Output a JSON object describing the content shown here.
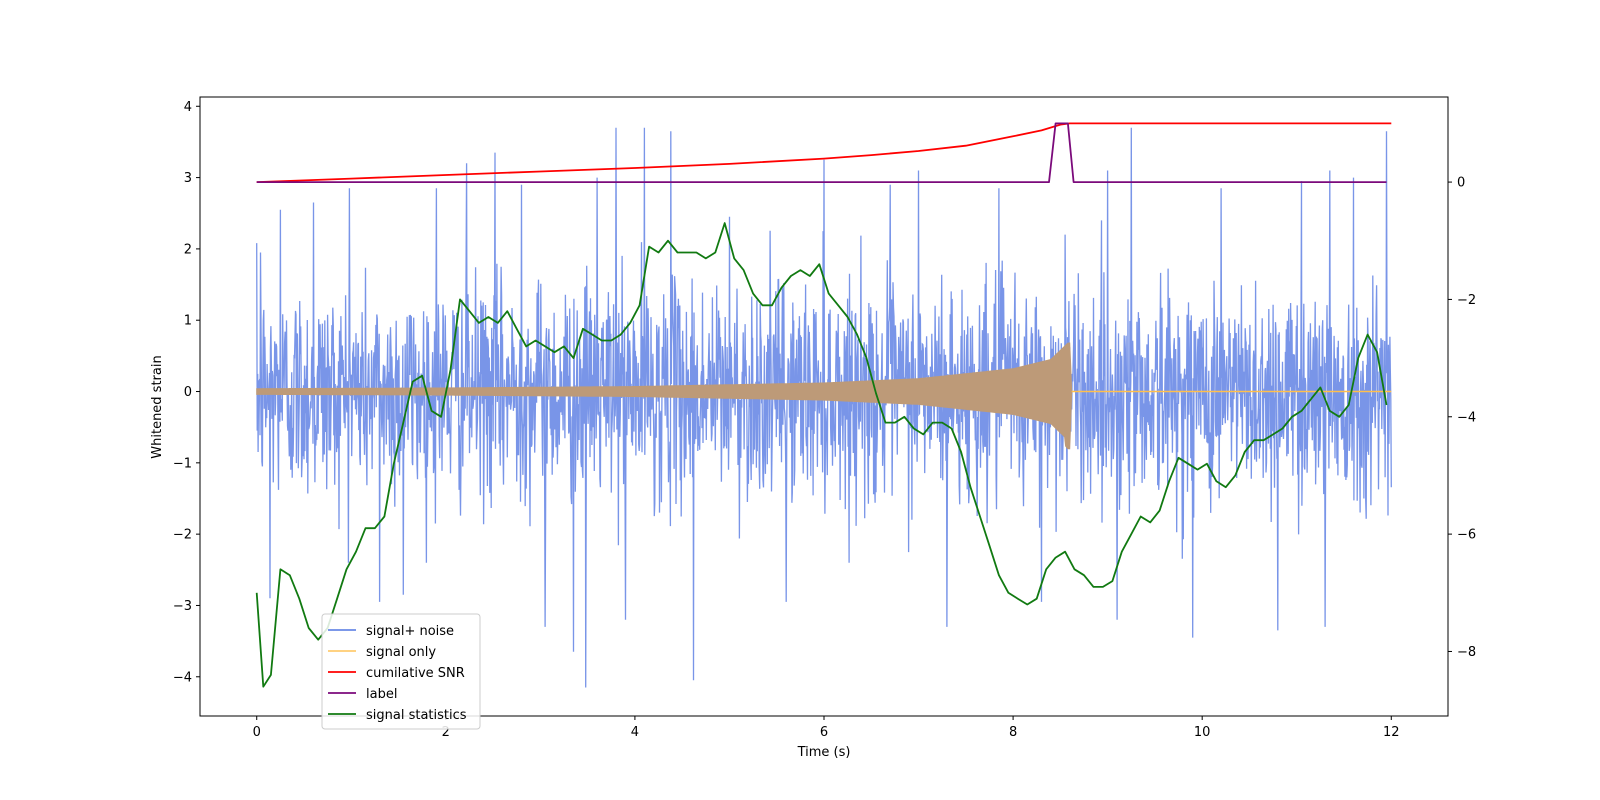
{
  "chart_data": {
    "type": "line",
    "title": "",
    "xlabel": "Time (s)",
    "ylabel": "Whitened strain",
    "xlim": [
      -0.6,
      12.6
    ],
    "ylim": [
      -4.55,
      4.13
    ],
    "ylim_right": [
      -9.1,
      1.45
    ],
    "xticks": [
      0,
      2,
      4,
      6,
      8,
      10,
      12
    ],
    "yticks": [
      -4,
      -3,
      -2,
      -1,
      0,
      1,
      2,
      3,
      4
    ],
    "yticks_right": [
      -8,
      -6,
      -4,
      -2,
      0
    ],
    "grid": false,
    "legend_position": "lower-left",
    "series": [
      {
        "name": "signal+ noise",
        "axis": "left",
        "color": "#6a8ae6",
        "style": "noise",
        "x_range": [
          0,
          12
        ],
        "baseline_std": 0.75,
        "spike_peaks": [
          {
            "x": 0.04,
            "y": 1.95
          },
          {
            "x": 0.14,
            "y": -2.9
          },
          {
            "x": 0.25,
            "y": 2.55
          },
          {
            "x": 0.6,
            "y": 2.65
          },
          {
            "x": 0.98,
            "y": 2.85
          },
          {
            "x": 1.3,
            "y": -2.95
          },
          {
            "x": 1.55,
            "y": -2.85
          },
          {
            "x": 1.9,
            "y": 2.85
          },
          {
            "x": 2.22,
            "y": 3.2
          },
          {
            "x": 2.52,
            "y": 3.35
          },
          {
            "x": 2.8,
            "y": 2.9
          },
          {
            "x": 3.05,
            "y": -3.3
          },
          {
            "x": 3.35,
            "y": -3.65
          },
          {
            "x": 3.48,
            "y": -4.15
          },
          {
            "x": 3.6,
            "y": 3.0
          },
          {
            "x": 3.8,
            "y": 3.7
          },
          {
            "x": 3.9,
            "y": -3.2
          },
          {
            "x": 4.1,
            "y": 3.7
          },
          {
            "x": 4.38,
            "y": 3.65
          },
          {
            "x": 4.62,
            "y": -4.05
          },
          {
            "x": 5.0,
            "y": 2.45
          },
          {
            "x": 5.6,
            "y": -2.95
          },
          {
            "x": 6.0,
            "y": 3.25
          },
          {
            "x": 6.7,
            "y": 2.9
          },
          {
            "x": 7.0,
            "y": 3.1
          },
          {
            "x": 7.3,
            "y": -3.3
          },
          {
            "x": 7.85,
            "y": 2.85
          },
          {
            "x": 8.3,
            "y": -2.95
          },
          {
            "x": 8.55,
            "y": 2.2
          },
          {
            "x": 9.0,
            "y": 3.1
          },
          {
            "x": 9.1,
            "y": -3.2
          },
          {
            "x": 9.25,
            "y": 3.7
          },
          {
            "x": 9.9,
            "y": -3.45
          },
          {
            "x": 10.2,
            "y": 2.85
          },
          {
            "x": 10.8,
            "y": -3.35
          },
          {
            "x": 11.05,
            "y": 2.95
          },
          {
            "x": 11.3,
            "y": -3.3
          },
          {
            "x": 11.35,
            "y": 3.1
          },
          {
            "x": 11.6,
            "y": 3.0
          },
          {
            "x": 11.95,
            "y": 3.65
          }
        ]
      },
      {
        "name": "signal only",
        "axis": "left",
        "color": "#ffbf4d",
        "style": "chirp",
        "x_range": [
          0,
          12
        ],
        "merger_x": 8.6,
        "envelope": [
          [
            0,
            0.04
          ],
          [
            2,
            0.05
          ],
          [
            4,
            0.07
          ],
          [
            6,
            0.12
          ],
          [
            7,
            0.18
          ],
          [
            8,
            0.32
          ],
          [
            8.4,
            0.45
          ],
          [
            8.58,
            0.68
          ],
          [
            8.6,
            0.68
          ],
          [
            8.62,
            0.0
          ],
          [
            12,
            0.0
          ]
        ],
        "fill_color": "#bd9a78"
      },
      {
        "name": "cumilative SNR",
        "axis": "right",
        "color": "#ff0000",
        "x": [
          0,
          1,
          2,
          3,
          4,
          5,
          6,
          6.5,
          7,
          7.5,
          8,
          8.3,
          8.5,
          8.6,
          12
        ],
        "values": [
          0.0,
          0.06,
          0.12,
          0.18,
          0.24,
          0.31,
          0.4,
          0.46,
          0.53,
          0.62,
          0.78,
          0.88,
          0.98,
          1.0,
          1.0
        ]
      },
      {
        "name": "label",
        "axis": "right",
        "color": "#7b0a7b",
        "x": [
          0,
          8.38,
          8.45,
          8.58,
          8.64,
          11.95
        ],
        "values": [
          0,
          0,
          1,
          1,
          0,
          0
        ]
      },
      {
        "name": "signal statistics",
        "axis": "right",
        "color": "#117a11",
        "x": [
          0.0,
          0.07,
          0.15,
          0.25,
          0.35,
          0.45,
          0.55,
          0.65,
          0.75,
          0.85,
          0.95,
          1.05,
          1.15,
          1.25,
          1.35,
          1.45,
          1.55,
          1.65,
          1.75,
          1.85,
          1.95,
          2.05,
          2.15,
          2.25,
          2.35,
          2.45,
          2.55,
          2.65,
          2.75,
          2.85,
          2.95,
          3.05,
          3.15,
          3.25,
          3.35,
          3.45,
          3.55,
          3.65,
          3.75,
          3.85,
          3.95,
          4.05,
          4.15,
          4.25,
          4.35,
          4.45,
          4.55,
          4.65,
          4.75,
          4.85,
          4.95,
          5.05,
          5.15,
          5.25,
          5.35,
          5.45,
          5.55,
          5.65,
          5.75,
          5.85,
          5.95,
          6.05,
          6.15,
          6.25,
          6.35,
          6.45,
          6.55,
          6.65,
          6.75,
          6.85,
          6.95,
          7.05,
          7.15,
          7.25,
          7.35,
          7.45,
          7.55,
          7.65,
          7.75,
          7.85,
          7.95,
          8.05,
          8.15,
          8.25,
          8.35,
          8.45,
          8.55,
          8.65,
          8.75,
          8.85,
          8.95,
          9.05,
          9.15,
          9.25,
          9.35,
          9.45,
          9.55,
          9.65,
          9.75,
          9.85,
          9.95,
          10.05,
          10.15,
          10.25,
          10.35,
          10.45,
          10.55,
          10.65,
          10.75,
          10.85,
          10.95,
          11.05,
          11.15,
          11.25,
          11.35,
          11.45,
          11.55,
          11.65,
          11.75,
          11.85,
          11.95
        ],
        "values": [
          -7.0,
          -8.6,
          -8.4,
          -6.6,
          -6.7,
          -7.1,
          -7.6,
          -7.8,
          -7.6,
          -7.1,
          -6.6,
          -6.3,
          -5.9,
          -5.9,
          -5.7,
          -4.8,
          -4.1,
          -3.4,
          -3.3,
          -3.9,
          -4.0,
          -3.2,
          -2.0,
          -2.2,
          -2.4,
          -2.3,
          -2.4,
          -2.2,
          -2.5,
          -2.8,
          -2.7,
          -2.8,
          -2.9,
          -2.8,
          -3.0,
          -2.5,
          -2.6,
          -2.7,
          -2.7,
          -2.6,
          -2.4,
          -2.1,
          -1.1,
          -1.2,
          -1.0,
          -1.2,
          -1.2,
          -1.2,
          -1.3,
          -1.2,
          -0.7,
          -1.3,
          -1.5,
          -1.9,
          -2.1,
          -2.1,
          -1.8,
          -1.6,
          -1.5,
          -1.6,
          -1.4,
          -1.9,
          -2.1,
          -2.3,
          -2.6,
          -3.0,
          -3.6,
          -4.1,
          -4.1,
          -4.0,
          -4.2,
          -4.3,
          -4.1,
          -4.1,
          -4.2,
          -4.6,
          -5.2,
          -5.7,
          -6.2,
          -6.7,
          -7.0,
          -7.1,
          -7.2,
          -7.1,
          -6.6,
          -6.4,
          -6.3,
          -6.6,
          -6.7,
          -6.9,
          -6.9,
          -6.8,
          -6.3,
          -6.0,
          -5.7,
          -5.8,
          -5.6,
          -5.1,
          -4.7,
          -4.8,
          -4.9,
          -4.8,
          -5.1,
          -5.2,
          -5.0,
          -4.6,
          -4.4,
          -4.4,
          -4.3,
          -4.2,
          -4.0,
          -3.9,
          -3.7,
          -3.5,
          -3.9,
          -4.0,
          -3.8,
          -3.0,
          -2.6,
          -2.9,
          -3.8
        ]
      }
    ]
  }
}
